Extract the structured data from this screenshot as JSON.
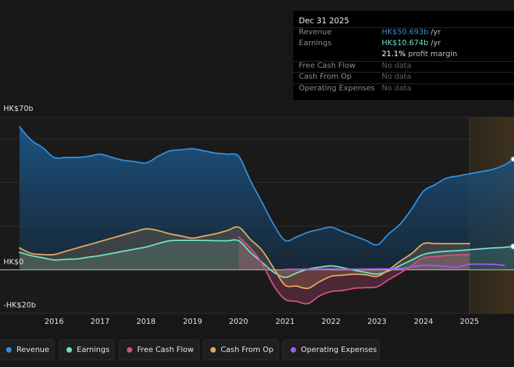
{
  "tooltip": {
    "date": "Dec 31 2025",
    "rows": [
      {
        "label": "Revenue",
        "value": "HK$50.693b",
        "unit": " /yr",
        "color": "#2f8fdd"
      },
      {
        "label": "Earnings",
        "value": "HK$10.674b",
        "unit": " /yr",
        "color": "#6fe0c7"
      },
      {
        "label": "",
        "value": "21.1%",
        "unit": " profit margin",
        "color": "#ffffff"
      },
      {
        "label": "Free Cash Flow",
        "value": "No data",
        "unit": "",
        "color": "#5f5f5f"
      },
      {
        "label": "Cash From Op",
        "value": "No data",
        "unit": "",
        "color": "#5f5f5f"
      },
      {
        "label": "Operating Expenses",
        "value": "No data",
        "unit": "",
        "color": "#5f5f5f"
      }
    ]
  },
  "y_axis": {
    "top_label": "HK$70b",
    "zero_label": "HK$0",
    "bottom_label": "-HK$20b"
  },
  "legend": [
    {
      "label": "Revenue",
      "color": "#2f8fdd"
    },
    {
      "label": "Earnings",
      "color": "#6fe0c7"
    },
    {
      "label": "Free Cash Flow",
      "color": "#cf4f86"
    },
    {
      "label": "Cash From Op",
      "color": "#e2a85c"
    },
    {
      "label": "Operating Expenses",
      "color": "#a05ae6"
    }
  ],
  "chart_data": {
    "type": "area",
    "x_ticks": [
      "2016",
      "2017",
      "2018",
      "2019",
      "2020",
      "2021",
      "2022",
      "2023",
      "2024",
      "2025"
    ],
    "ylim": [
      -20,
      70
    ],
    "grid": true,
    "forecast_shaded_from": 2025.0,
    "series": [
      {
        "name": "Revenue",
        "color": "#2f8fdd",
        "x": [
          2015.25,
          2015.5,
          2015.75,
          2016.0,
          2016.25,
          2016.5,
          2016.75,
          2017.0,
          2017.25,
          2017.5,
          2017.75,
          2018.0,
          2018.25,
          2018.5,
          2018.75,
          2019.0,
          2019.25,
          2019.5,
          2019.75,
          2020.0,
          2020.25,
          2020.5,
          2020.75,
          2021.0,
          2021.25,
          2021.5,
          2021.75,
          2022.0,
          2022.25,
          2022.5,
          2022.75,
          2023.0,
          2023.25,
          2023.5,
          2023.75,
          2024.0,
          2024.25,
          2024.5,
          2024.75,
          2025.0,
          2025.25,
          2025.5,
          2025.75,
          2026.0
        ],
        "values": [
          65.5,
          59.5,
          56,
          51.5,
          51.5,
          51.5,
          52,
          53,
          51.5,
          50.2,
          49.6,
          49,
          52,
          54.5,
          55,
          55.5,
          54.5,
          53.5,
          53,
          52,
          41,
          31,
          21,
          13.5,
          15,
          17.2,
          18.5,
          19.5,
          17.5,
          15.5,
          13.5,
          11.5,
          16.5,
          21,
          28,
          36,
          39,
          42,
          43,
          44,
          45,
          46,
          48,
          50.7
        ]
      },
      {
        "name": "Earnings",
        "color": "#6fe0c7",
        "x": [
          2015.25,
          2015.5,
          2015.75,
          2016.0,
          2016.25,
          2016.5,
          2016.75,
          2017.0,
          2017.25,
          2017.5,
          2017.75,
          2018.0,
          2018.25,
          2018.5,
          2018.75,
          2019.0,
          2019.25,
          2019.5,
          2019.75,
          2020.0,
          2020.25,
          2020.5,
          2020.75,
          2021.0,
          2021.25,
          2021.5,
          2021.75,
          2022.0,
          2022.25,
          2022.5,
          2022.75,
          2023.0,
          2023.25,
          2023.5,
          2023.75,
          2024.0,
          2024.25,
          2024.5,
          2024.75,
          2025.0,
          2025.25,
          2025.5,
          2025.75,
          2026.0
        ],
        "values": [
          8,
          6.5,
          5.5,
          4.5,
          4.8,
          5,
          5.8,
          6.5,
          7.5,
          8.5,
          9.5,
          10.5,
          12,
          13.3,
          13.5,
          13.5,
          13.5,
          13.3,
          13.3,
          13.3,
          8,
          3.5,
          -1,
          -3.5,
          -1.5,
          0.3,
          1.2,
          1.8,
          1,
          -0.2,
          -1.2,
          -2,
          -0.5,
          2,
          4.5,
          7,
          8,
          8.5,
          8.8,
          9.2,
          9.6,
          10,
          10.3,
          10.7
        ]
      },
      {
        "name": "Free Cash Flow",
        "color": "#cf4f86",
        "x": [
          2020.0,
          2020.25,
          2020.5,
          2020.75,
          2021.0,
          2021.25,
          2021.5,
          2021.75,
          2022.0,
          2022.25,
          2022.5,
          2022.75,
          2023.0,
          2023.25,
          2023.5,
          2023.75,
          2024.0,
          2024.25,
          2024.5,
          2024.75,
          2025.0
        ],
        "values": [
          15,
          10,
          3,
          -7,
          -13.5,
          -14.5,
          -15.5,
          -12,
          -10,
          -9.5,
          -8.5,
          -8.2,
          -7.8,
          -4.5,
          -1.5,
          2,
          5.5,
          6,
          6.5,
          6.8,
          7
        ]
      },
      {
        "name": "Cash From Op",
        "color": "#e2a85c",
        "x": [
          2015.25,
          2015.5,
          2015.75,
          2016.0,
          2016.25,
          2016.5,
          2016.75,
          2017.0,
          2017.25,
          2017.5,
          2017.75,
          2018.0,
          2018.25,
          2018.5,
          2018.75,
          2019.0,
          2019.25,
          2019.5,
          2019.75,
          2020.0,
          2020.25,
          2020.5,
          2020.75,
          2021.0,
          2021.25,
          2021.5,
          2021.75,
          2022.0,
          2022.25,
          2022.5,
          2022.75,
          2023.0,
          2023.25,
          2023.5,
          2023.75,
          2024.0,
          2024.25,
          2024.5,
          2024.75,
          2025.0
        ],
        "values": [
          10,
          7.5,
          7,
          7,
          8.5,
          10,
          11.5,
          13,
          14.5,
          16,
          17.5,
          18.8,
          18,
          16.5,
          15.5,
          14.5,
          15.5,
          16.5,
          18,
          19.5,
          14,
          9,
          1,
          -7,
          -7.5,
          -8.5,
          -5.5,
          -3,
          -2.5,
          -2,
          -2.3,
          -3,
          0,
          4,
          7.5,
          12,
          12,
          12,
          12,
          12
        ]
      },
      {
        "name": "Operating Expenses",
        "color": "#a05ae6",
        "x": [
          2021.0,
          2021.5,
          2022.0,
          2022.5,
          2023.0,
          2023.5,
          2024.0,
          2024.5,
          2024.75,
          2025.0,
          2025.5,
          2025.75
        ],
        "values": [
          0.2,
          0.3,
          0.4,
          0.3,
          0.4,
          0.6,
          2,
          1.5,
          1.2,
          2.5,
          2.5,
          2
        ]
      }
    ]
  }
}
